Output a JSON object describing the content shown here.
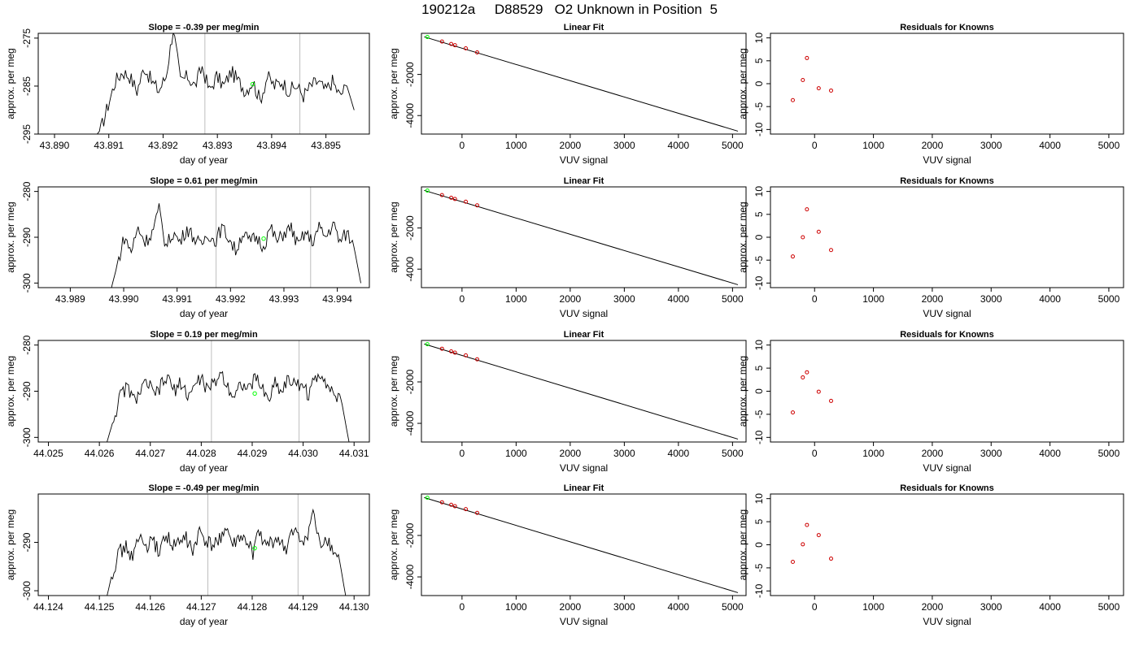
{
  "figure_title": "190212a     D88529   O2 Unknown in Position  5",
  "colors": {
    "line": "#000000",
    "vline": "#bebebe",
    "unknown_point": "#00ff00",
    "known_point": "#cd0000",
    "fit": "#000000"
  },
  "chart_data": [
    {
      "type": "line",
      "panel": "timeseries",
      "row": 1,
      "title": "Slope =  -0.39  per meg/min",
      "xlabel": "day of year",
      "ylabel": "approx. per meg",
      "xlim": [
        43.8897,
        43.8958
      ],
      "ylim": [
        -295,
        -274
      ],
      "xticks": [
        "43.890",
        "43.891",
        "43.892",
        "43.893",
        "43.894",
        "43.895"
      ],
      "yticks": [
        "-275",
        "-285",
        "-295"
      ],
      "vlines": [
        43.89277,
        43.89452
      ],
      "trace_start": 43.89072,
      "trace_end": 43.89552,
      "trace_levels": [
        -296,
        -294,
        -289,
        -284,
        -282,
        -283,
        -286,
        -281,
        -284,
        -286,
        -283,
        -273,
        -284,
        -283,
        -285,
        -281,
        -286,
        -283,
        -285,
        -282,
        -284,
        -286,
        -284,
        -288,
        -283,
        -285,
        -284,
        -286,
        -285,
        -287,
        -285,
        -284,
        -286,
        -284,
        -287,
        -285,
        -290
      ],
      "unknown_point": {
        "x": 43.89365,
        "y": -284.6
      }
    },
    {
      "type": "line",
      "panel": "fit",
      "row": 1,
      "title": "Linear Fit",
      "xlabel": "VUV signal",
      "ylabel": "approx. per meg",
      "xlim": [
        -750,
        5250
      ],
      "ylim": [
        -4900,
        0
      ],
      "xticks": [
        "0",
        "1000",
        "2000",
        "3000",
        "4000",
        "5000"
      ],
      "yticks": [
        "-2000",
        "-4000"
      ],
      "fit_line": {
        "x": [
          -700,
          5100
        ],
        "y": [
          -170,
          -4760
        ]
      },
      "known_points": {
        "x": [
          -370,
          -200,
          -130,
          70,
          280
        ],
        "y": [
          -400,
          -520,
          -580,
          -730,
          -930
        ]
      },
      "unknown_point": {
        "x": -640,
        "y": -180
      }
    },
    {
      "type": "scatter",
      "panel": "residuals",
      "row": 1,
      "title": "Residuals for Knowns",
      "xlabel": "VUV signal",
      "ylabel": "approx. per meg",
      "xlim": [
        -750,
        5250
      ],
      "ylim": [
        -11,
        11
      ],
      "xticks": [
        "0",
        "1000",
        "2000",
        "3000",
        "4000",
        "5000"
      ],
      "yticks": [
        "10",
        "5",
        "0",
        "-5",
        "-10"
      ],
      "x": [
        -370,
        -200,
        -130,
        70,
        280
      ],
      "y": [
        -3.6,
        0.8,
        5.6,
        -1.0,
        -1.5
      ]
    },
    {
      "type": "line",
      "panel": "timeseries",
      "row": 2,
      "title": "Slope =  0.61  per meg/min",
      "xlabel": "day of year",
      "ylabel": "approx. per meg",
      "xlim": [
        43.9884,
        43.9946
      ],
      "ylim": [
        -301,
        -279
      ],
      "xticks": [
        "43.989",
        "43.990",
        "43.991",
        "43.992",
        "43.993",
        "43.994"
      ],
      "yticks": [
        "-280",
        "-290",
        "-300"
      ],
      "vlines": [
        43.99173,
        43.9935
      ],
      "trace_start": 43.98975,
      "trace_end": 43.99444,
      "trace_levels": [
        -302,
        -296,
        -290,
        -293,
        -288,
        -291,
        -289,
        -284,
        -292,
        -289,
        -291,
        -288,
        -290,
        -292,
        -289,
        -291,
        -288,
        -290,
        -293,
        -289,
        -291,
        -290,
        -292,
        -288,
        -291,
        -289,
        -288,
        -292,
        -289,
        -291,
        -288,
        -290,
        -287,
        -291,
        -289,
        -292,
        -300
      ],
      "unknown_point": {
        "x": 43.99262,
        "y": -290.3
      }
    },
    {
      "type": "line",
      "panel": "fit",
      "row": 2,
      "title": "Linear Fit",
      "xlabel": "VUV signal",
      "ylabel": "approx. per meg",
      "xlim": [
        -750,
        5250
      ],
      "ylim": [
        -4900,
        0
      ],
      "xticks": [
        "0",
        "1000",
        "2000",
        "3000",
        "4000",
        "5000"
      ],
      "yticks": [
        "-2000",
        "-4000"
      ],
      "fit_line": {
        "x": [
          -700,
          5100
        ],
        "y": [
          -170,
          -4760
        ]
      },
      "known_points": {
        "x": [
          -370,
          -200,
          -130,
          70,
          280
        ],
        "y": [
          -400,
          -530,
          -590,
          -720,
          -900
        ]
      },
      "unknown_point": {
        "x": -640,
        "y": -180
      }
    },
    {
      "type": "scatter",
      "panel": "residuals",
      "row": 2,
      "title": "Residuals for Knowns",
      "xlabel": "VUV signal",
      "ylabel": "approx. per meg",
      "xlim": [
        -750,
        5250
      ],
      "ylim": [
        -11,
        11
      ],
      "xticks": [
        "0",
        "1000",
        "2000",
        "3000",
        "4000",
        "5000"
      ],
      "yticks": [
        "10",
        "5",
        "0",
        "-5",
        "-10"
      ],
      "x": [
        -370,
        -200,
        -130,
        70,
        280
      ],
      "y": [
        -4.2,
        0.0,
        6.1,
        1.2,
        -2.8
      ]
    },
    {
      "type": "line",
      "panel": "timeseries",
      "row": 3,
      "title": "Slope =  0.19  per meg/min",
      "xlabel": "day of year",
      "ylabel": "approx. per meg",
      "xlim": [
        44.0248,
        44.0313
      ],
      "ylim": [
        -301,
        -279
      ],
      "xticks": [
        "44.025",
        "44.026",
        "44.027",
        "44.028",
        "44.029",
        "44.030",
        "44.031"
      ],
      "yticks": [
        "-280",
        "-290",
        "-300"
      ],
      "vlines": [
        44.0282,
        44.02992
      ],
      "trace_start": 44.02615,
      "trace_end": 44.0309,
      "trace_levels": [
        -301,
        -296,
        -291,
        -289,
        -292,
        -290,
        -288,
        -291,
        -289,
        -287,
        -290,
        -288,
        -291,
        -289,
        -287,
        -290,
        -288,
        -286,
        -289,
        -291,
        -288,
        -290,
        -287,
        -289,
        -292,
        -288,
        -290,
        -287,
        -289,
        -288,
        -291,
        -287,
        -286,
        -289,
        -291,
        -293,
        -301
      ],
      "unknown_point": {
        "x": 44.02905,
        "y": -290.5
      }
    },
    {
      "type": "line",
      "panel": "fit",
      "row": 3,
      "title": "Linear Fit",
      "xlabel": "VUV signal",
      "ylabel": "approx. per meg",
      "xlim": [
        -750,
        5250
      ],
      "ylim": [
        -4900,
        0
      ],
      "xticks": [
        "0",
        "1000",
        "2000",
        "3000",
        "4000",
        "5000"
      ],
      "yticks": [
        "-2000",
        "-4000"
      ],
      "fit_line": {
        "x": [
          -700,
          5100
        ],
        "y": [
          -170,
          -4760
        ]
      },
      "known_points": {
        "x": [
          -370,
          -200,
          -130,
          70,
          280
        ],
        "y": [
          -400,
          -530,
          -590,
          -720,
          -910
        ]
      },
      "unknown_point": {
        "x": -640,
        "y": -180
      }
    },
    {
      "type": "scatter",
      "panel": "residuals",
      "row": 3,
      "title": "Residuals for Knowns",
      "xlabel": "VUV signal",
      "ylabel": "approx. per meg",
      "xlim": [
        -750,
        5250
      ],
      "ylim": [
        -11,
        11
      ],
      "xticks": [
        "0",
        "1000",
        "2000",
        "3000",
        "4000",
        "5000"
      ],
      "yticks": [
        "10",
        "5",
        "0",
        "-5",
        "-10"
      ],
      "x": [
        -370,
        -200,
        -130,
        70,
        280
      ],
      "y": [
        -4.6,
        3.0,
        4.1,
        -0.1,
        -2.1
      ]
    },
    {
      "type": "line",
      "panel": "timeseries",
      "row": 4,
      "title": "Slope =  -0.49  per meg/min",
      "xlabel": "day of year",
      "ylabel": "approx. per meg",
      "xlim": [
        44.1238,
        44.1303
      ],
      "ylim": [
        -301,
        -280
      ],
      "xticks": [
        "44.124",
        "44.125",
        "44.126",
        "44.127",
        "44.128",
        "44.129",
        "44.130"
      ],
      "yticks": [
        "-290",
        "-300"
      ],
      "vlines": [
        44.12713,
        44.1289
      ],
      "trace_start": 44.12513,
      "trace_end": 44.12985,
      "trace_levels": [
        -302,
        -296,
        -292,
        -291,
        -293,
        -289,
        -291,
        -290,
        -292,
        -288,
        -291,
        -290,
        -289,
        -292,
        -288,
        -290,
        -291,
        -289,
        -287,
        -291,
        -289,
        -290,
        -292,
        -288,
        -291,
        -290,
        -289,
        -292,
        -287,
        -290,
        -289,
        -284,
        -291,
        -289,
        -292,
        -294,
        -302
      ],
      "unknown_point": {
        "x": 44.12805,
        "y": -291.2
      }
    },
    {
      "type": "line",
      "panel": "fit",
      "row": 4,
      "title": "Linear Fit",
      "xlabel": "VUV signal",
      "ylabel": "approx. per meg",
      "xlim": [
        -750,
        5250
      ],
      "ylim": [
        -4900,
        0
      ],
      "xticks": [
        "0",
        "1000",
        "2000",
        "3000",
        "4000",
        "5000"
      ],
      "yticks": [
        "-2000",
        "-4000"
      ],
      "fit_line": {
        "x": [
          -700,
          5100
        ],
        "y": [
          -170,
          -4760
        ]
      },
      "known_points": {
        "x": [
          -370,
          -200,
          -130,
          70,
          280
        ],
        "y": [
          -400,
          -520,
          -590,
          -730,
          -910
        ]
      },
      "unknown_point": {
        "x": -640,
        "y": -180
      }
    },
    {
      "type": "scatter",
      "panel": "residuals",
      "row": 4,
      "title": "Residuals for Knowns",
      "xlabel": "VUV signal",
      "ylabel": "approx. per meg",
      "xlim": [
        -750,
        5250
      ],
      "ylim": [
        -11,
        11
      ],
      "xticks": [
        "0",
        "1000",
        "2000",
        "3000",
        "4000",
        "5000"
      ],
      "yticks": [
        "10",
        "5",
        "0",
        "-5",
        "-10"
      ],
      "x": [
        -370,
        -200,
        -130,
        70,
        280
      ],
      "y": [
        -3.7,
        0.1,
        4.3,
        2.1,
        -3.0
      ]
    }
  ]
}
